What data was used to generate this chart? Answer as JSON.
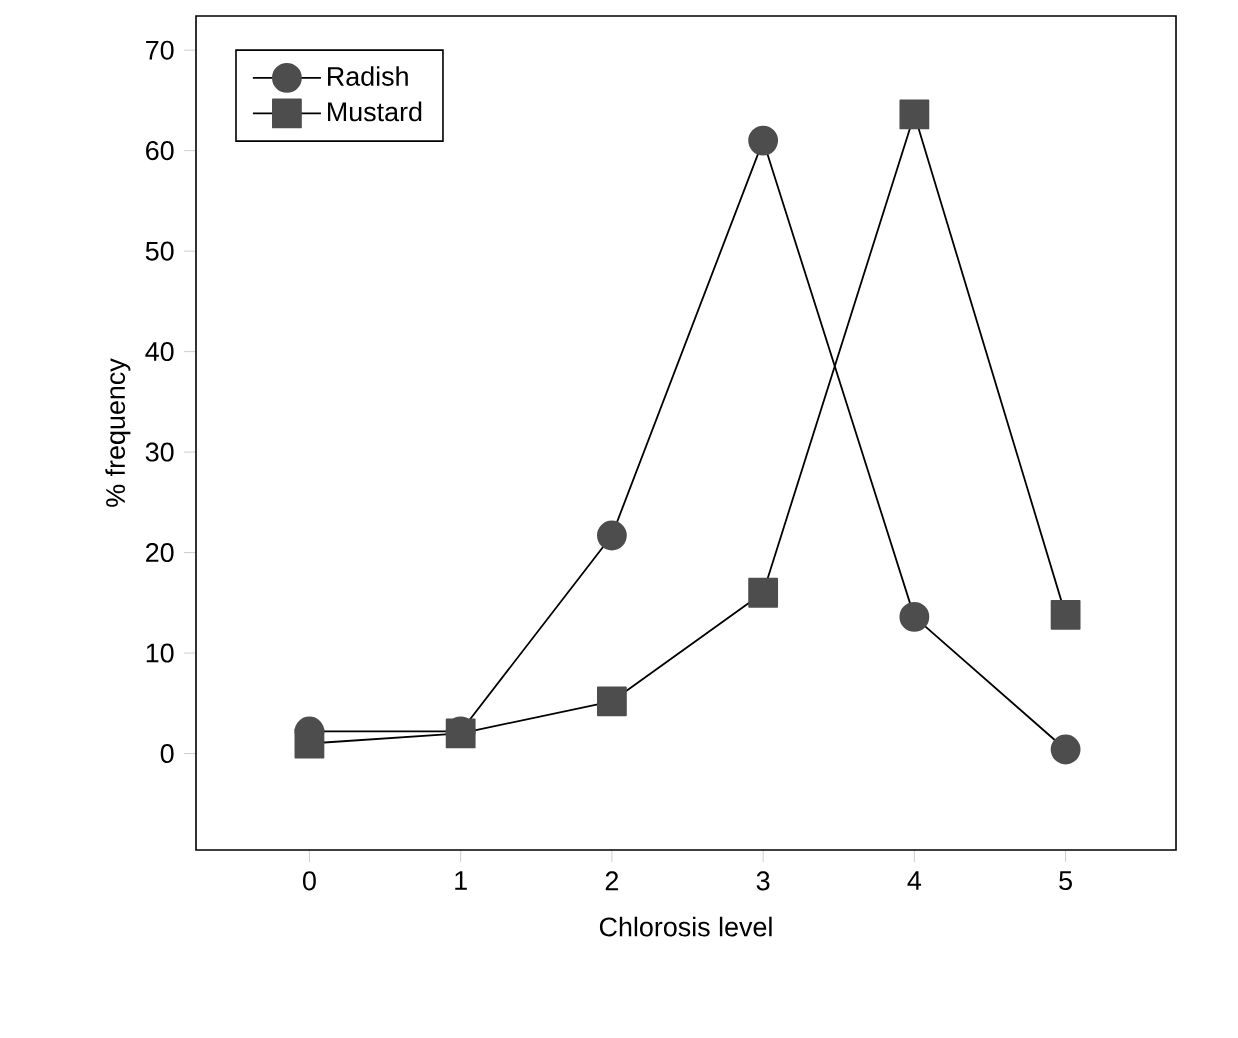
{
  "chart_data": {
    "type": "line",
    "xlabel": "Chlorosis level",
    "ylabel": "% frequency",
    "x": [
      0,
      1,
      2,
      3,
      4,
      5
    ],
    "series": [
      {
        "name": "Radish",
        "color": "#4d4d4d",
        "marker": "circle",
        "values": [
          2.2,
          2.2,
          21.7,
          61,
          13.6,
          0.4
        ]
      },
      {
        "name": "Mustard",
        "color": "#4d4d4d",
        "marker": "square",
        "values": [
          1,
          2,
          5.2,
          16,
          63.6,
          13.8
        ]
      }
    ],
    "xlim": [
      -0.75,
      5.73
    ],
    "ylim": [
      -9.6,
      73.4
    ],
    "xticks": [
      0,
      1,
      2,
      3,
      4,
      5
    ],
    "yticks": [
      0,
      10,
      20,
      30,
      40,
      50,
      60,
      70
    ],
    "grid": false,
    "legend": "top left",
    "line_style": "solid"
  }
}
